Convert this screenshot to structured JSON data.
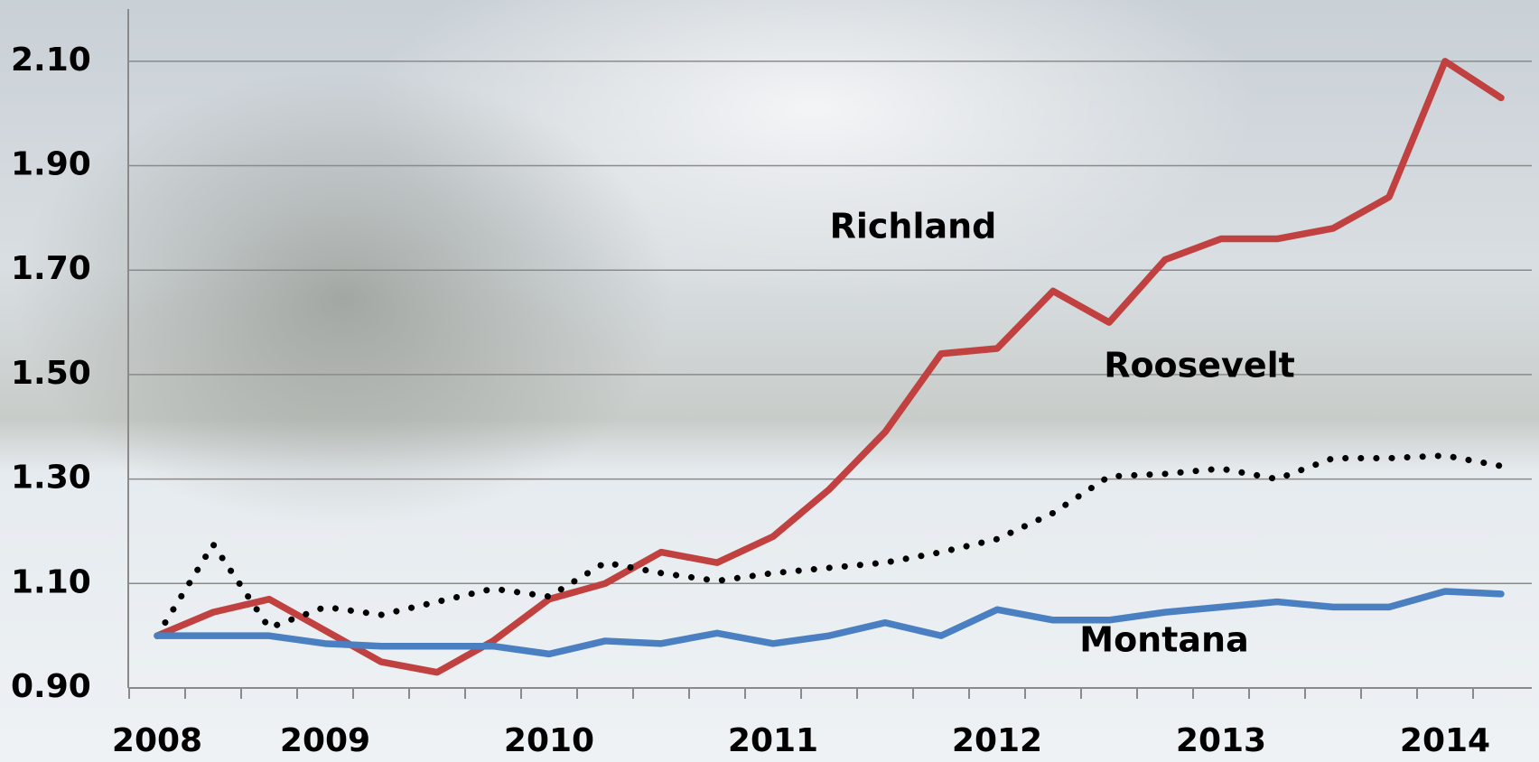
{
  "chart_data": {
    "type": "line",
    "categories": [
      "2008",
      null,
      null,
      "2009",
      null,
      null,
      null,
      "2010",
      null,
      null,
      null,
      "2011",
      null,
      null,
      null,
      "2012",
      null,
      null,
      null,
      "2013",
      null,
      null,
      null,
      "2014",
      null
    ],
    "series": [
      {
        "name": "Richland",
        "color": "#c0413f",
        "style": "solid",
        "values": [
          1.0,
          1.045,
          1.07,
          1.01,
          0.95,
          0.93,
          0.99,
          1.07,
          1.1,
          1.16,
          1.14,
          1.19,
          1.28,
          1.39,
          1.54,
          1.55,
          1.66,
          1.6,
          1.72,
          1.76,
          1.76,
          1.78,
          1.84,
          2.1,
          2.03
        ]
      },
      {
        "name": "Roosevelt",
        "color": "#000000",
        "style": "dotted",
        "values": [
          1.0,
          1.175,
          1.015,
          1.055,
          1.04,
          1.065,
          1.09,
          1.075,
          1.14,
          1.12,
          1.105,
          1.12,
          1.13,
          1.14,
          1.16,
          1.185,
          1.235,
          1.305,
          1.31,
          1.32,
          1.3,
          1.34,
          1.34,
          1.345,
          1.325
        ]
      },
      {
        "name": "Montana",
        "color": "#4a7fc1",
        "style": "solid",
        "values": [
          1.0,
          1.0,
          1.0,
          0.985,
          0.98,
          0.98,
          0.98,
          0.965,
          0.99,
          0.985,
          1.005,
          0.985,
          1.0,
          1.025,
          1.0,
          1.05,
          1.03,
          1.03,
          1.045,
          1.055,
          1.065,
          1.055,
          1.055,
          1.085,
          1.08
        ]
      }
    ],
    "ylim": [
      0.9,
      2.2
    ],
    "yticks": [
      {
        "value": 0.9,
        "label": "0.90"
      },
      {
        "value": 1.1,
        "label": "1.10"
      },
      {
        "value": 1.3,
        "label": "1.30"
      },
      {
        "value": 1.5,
        "label": "1.50"
      },
      {
        "value": 1.7,
        "label": "1.70"
      },
      {
        "value": 1.9,
        "label": "1.90"
      },
      {
        "value": 2.1,
        "label": "2.10"
      }
    ],
    "grid": true
  }
}
